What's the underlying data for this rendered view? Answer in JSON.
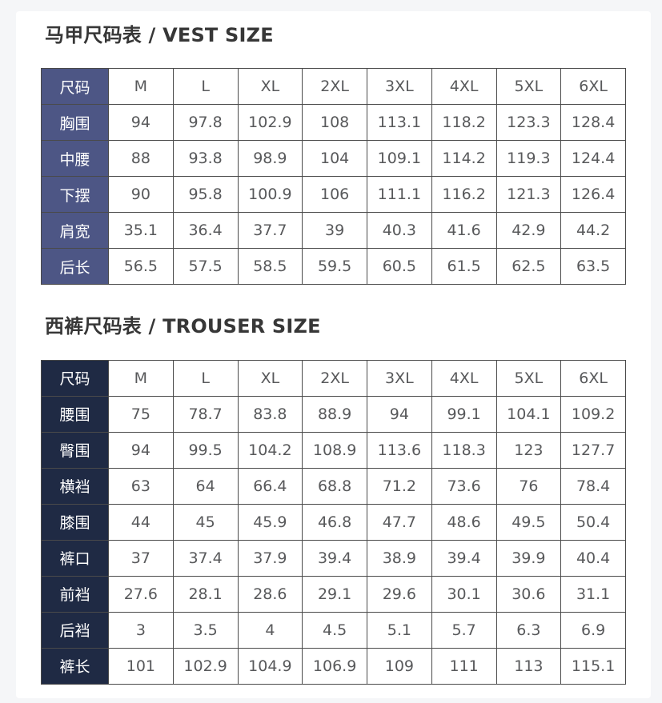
{
  "page": {
    "background_color": "#f5f6f8",
    "card_color": "#ffffff",
    "border_color": "#4a4a4a",
    "value_text_color": "#58595b",
    "title_color": "#373737"
  },
  "chart_data": [
    {
      "type": "table",
      "title": "马甲尺码表 / VEST SIZE",
      "corner_label": "尺码",
      "columns": [
        "M",
        "L",
        "XL",
        "2XL",
        "3XL",
        "4XL",
        "5XL",
        "6XL"
      ],
      "label_bg": "#4d5685",
      "label_text_color": "#ffffff",
      "rows": [
        {
          "label": "胸围",
          "values": [
            94,
            97.8,
            102.9,
            108,
            113.1,
            118.2,
            123.3,
            128.4
          ]
        },
        {
          "label": "中腰",
          "values": [
            88,
            93.8,
            98.9,
            104,
            109.1,
            114.2,
            119.3,
            124.4
          ]
        },
        {
          "label": "下摆",
          "values": [
            90,
            95.8,
            100.9,
            106,
            111.1,
            116.2,
            121.3,
            126.4
          ]
        },
        {
          "label": "肩宽",
          "values": [
            35.1,
            36.4,
            37.7,
            39,
            40.3,
            41.6,
            42.9,
            44.2
          ]
        },
        {
          "label": "后长",
          "values": [
            56.5,
            57.5,
            58.5,
            59.5,
            60.5,
            61.5,
            62.5,
            63.5
          ]
        }
      ]
    },
    {
      "type": "table",
      "title": "西裤尺码表 / TROUSER SIZE",
      "corner_label": "尺码",
      "columns": [
        "M",
        "L",
        "XL",
        "2XL",
        "3XL",
        "4XL",
        "5XL",
        "6XL"
      ],
      "label_bg": "#1f2a44",
      "label_text_color": "#ffffff",
      "rows": [
        {
          "label": "腰围",
          "values": [
            75,
            78.7,
            83.8,
            88.9,
            94,
            99.1,
            104.1,
            109.2
          ]
        },
        {
          "label": "臀围",
          "values": [
            94,
            99.5,
            104.2,
            108.9,
            113.6,
            118.3,
            123,
            127.7
          ]
        },
        {
          "label": "横裆",
          "values": [
            63,
            64,
            66.4,
            68.8,
            71.2,
            73.6,
            76,
            78.4
          ]
        },
        {
          "label": "膝围",
          "values": [
            44,
            45,
            45.9,
            46.8,
            47.7,
            48.6,
            49.5,
            50.4
          ]
        },
        {
          "label": "裤口",
          "values": [
            37,
            37.4,
            37.9,
            39.4,
            38.9,
            39.4,
            39.9,
            40.4
          ]
        },
        {
          "label": "前裆",
          "values": [
            27.6,
            28.1,
            28.6,
            29.1,
            29.6,
            30.1,
            30.6,
            31.1
          ]
        },
        {
          "label": "后裆",
          "values": [
            3,
            3.5,
            4,
            4.5,
            5.1,
            5.7,
            6.3,
            6.9
          ]
        },
        {
          "label": "裤长",
          "values": [
            101,
            102.9,
            104.9,
            106.9,
            109,
            111,
            113,
            115.1
          ]
        }
      ]
    }
  ]
}
